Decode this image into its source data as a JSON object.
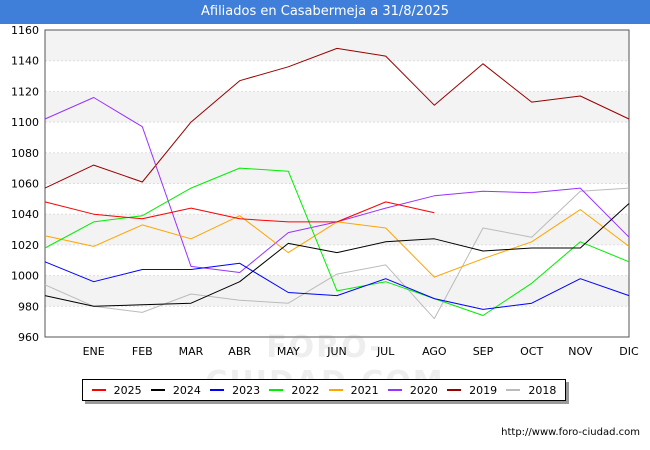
{
  "title": "Afiliados en Casabermeja a 31/8/2025",
  "footer_url": "http://www.foro-ciudad.com",
  "watermark": "FORO-CIUDAD.COM",
  "chart_data": {
    "type": "line",
    "title": "Afiliados en Casabermeja a 31/8/2025",
    "xlabel": "",
    "ylabel": "",
    "categories": [
      "",
      "ENE",
      "FEB",
      "MAR",
      "ABR",
      "MAY",
      "JUN",
      "JUL",
      "AGO",
      "SEP",
      "OCT",
      "NOV",
      "DIC"
    ],
    "ylim": [
      960,
      1160
    ],
    "yticks": [
      960,
      980,
      1000,
      1020,
      1040,
      1060,
      1080,
      1100,
      1120,
      1140,
      1160
    ],
    "grid": true,
    "legend_position": "bottom",
    "series": [
      {
        "name": "2025",
        "color": "#ff0000",
        "values": [
          1048,
          1040,
          1037,
          1044,
          1037,
          1035,
          1035,
          1048,
          1041,
          null,
          null,
          null,
          null
        ]
      },
      {
        "name": "2024",
        "color": "#000000",
        "values": [
          987,
          980,
          981,
          982,
          996,
          1021,
          1015,
          1022,
          1024,
          1016,
          1018,
          1018,
          1047
        ]
      },
      {
        "name": "2023",
        "color": "#0000ff",
        "values": [
          1009,
          996,
          1004,
          1004,
          1008,
          989,
          987,
          998,
          985,
          978,
          982,
          998,
          987
        ]
      },
      {
        "name": "2022",
        "color": "#00ee00",
        "values": [
          1018,
          1035,
          1039,
          1057,
          1070,
          1068,
          990,
          996,
          985,
          974,
          995,
          1022,
          1009
        ]
      },
      {
        "name": "2021",
        "color": "#ffa500",
        "values": [
          1026,
          1019,
          1033,
          1024,
          1039,
          1015,
          1035,
          1031,
          999,
          1011,
          1022,
          1043,
          1019
        ]
      },
      {
        "name": "2020",
        "color": "#9933ff",
        "values": [
          1102,
          1116,
          1097,
          1006,
          1002,
          1028,
          1035,
          1044,
          1052,
          1055,
          1054,
          1057,
          1025
        ]
      },
      {
        "name": "2019",
        "color": "#990000",
        "values": [
          1057,
          1072,
          1061,
          1100,
          1127,
          1136,
          1148,
          1143,
          1111,
          1138,
          1113,
          1117,
          1102
        ]
      },
      {
        "name": "2018",
        "color": "#bbbbbb",
        "values": [
          994,
          980,
          976,
          988,
          984,
          982,
          1001,
          1007,
          972,
          1031,
          1025,
          1055,
          1057
        ]
      }
    ]
  }
}
